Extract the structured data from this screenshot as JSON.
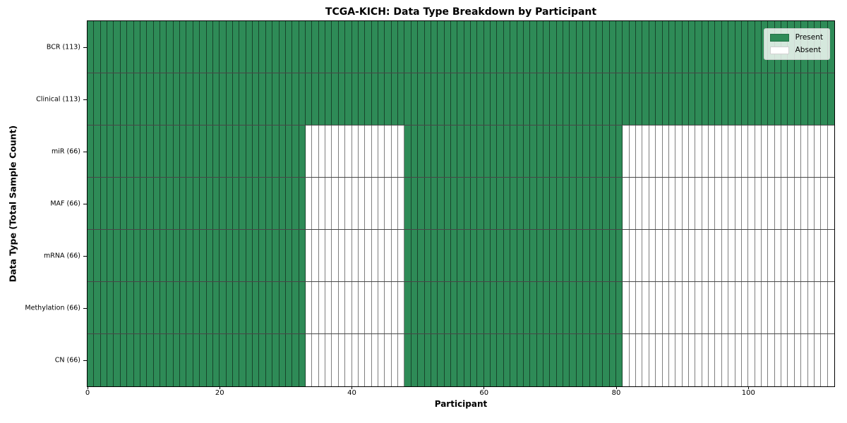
{
  "chart_data": {
    "type": "heatmap",
    "title": "TCGA-KICH: Data Type Breakdown by Participant",
    "xlabel": "Participant",
    "ylabel": "Data Type (Total Sample Count)",
    "n_participants": 113,
    "xlim": [
      0,
      113
    ],
    "x_ticks": [
      0,
      20,
      40,
      60,
      80,
      100
    ],
    "grid": false,
    "legend_position": "upper right",
    "legend_items": [
      {
        "label": "Present",
        "color": "#2e8b57"
      },
      {
        "label": "Absent",
        "color": "#ffffff"
      }
    ],
    "colors": {
      "present": "#2e8b57",
      "absent": "#ffffff",
      "cell_edge": "rgba(0,0,0,0.5)",
      "spine": "#000000",
      "legend_background": "rgba(255,255,255,0.8)"
    },
    "rows": [
      {
        "label": "BCR (113)",
        "data_type": "BCR",
        "total_samples": 113,
        "present_ranges": [
          [
            0,
            112
          ]
        ]
      },
      {
        "label": "Clinical (113)",
        "data_type": "Clinical",
        "total_samples": 113,
        "present_ranges": [
          [
            0,
            112
          ]
        ]
      },
      {
        "label": "miR (66)",
        "data_type": "miR",
        "total_samples": 66,
        "present_ranges": [
          [
            0,
            32
          ],
          [
            48,
            80
          ]
        ]
      },
      {
        "label": "MAF (66)",
        "data_type": "MAF",
        "total_samples": 66,
        "present_ranges": [
          [
            0,
            32
          ],
          [
            48,
            80
          ]
        ]
      },
      {
        "label": "mRNA (66)",
        "data_type": "mRNA",
        "total_samples": 66,
        "present_ranges": [
          [
            0,
            32
          ],
          [
            48,
            80
          ]
        ]
      },
      {
        "label": "Methylation (66)",
        "data_type": "Methylation",
        "total_samples": 66,
        "present_ranges": [
          [
            0,
            32
          ],
          [
            48,
            80
          ]
        ]
      },
      {
        "label": "CN (66)",
        "data_type": "CN",
        "total_samples": 66,
        "present_ranges": [
          [
            0,
            32
          ],
          [
            48,
            80
          ]
        ]
      }
    ]
  }
}
